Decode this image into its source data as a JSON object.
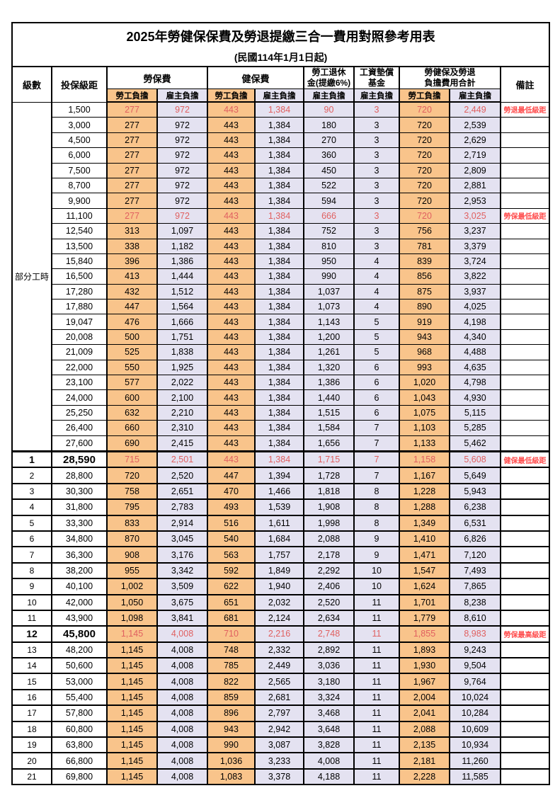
{
  "title": "2025年勞健保保費及勞退提繳三合一費用對照參考用表",
  "subtitle": "(民國114年1月1日起)",
  "header": {
    "level": "級數",
    "bracket": "投保級距",
    "labor_insurance": "勞保費",
    "health_insurance": "健保費",
    "pension_line1": "勞工退休",
    "pension_line2": "金(提繳6%)",
    "wage_fund_line1": "工資墊償",
    "wage_fund_line2": "基金",
    "total_line1": "勞健保及勞退",
    "total_line2": "負擔費用合計",
    "remark": "備註",
    "employee": "勞工負擔",
    "employer": "雇主負擔"
  },
  "colors": {
    "employee_bg": "#f9c48b",
    "employer_bg": "#e4e2f1",
    "highlight_value_text": "#e06060",
    "remark_text": "#ff4d4d",
    "border": "#000000"
  },
  "table": {
    "part_time_label": "部分工時",
    "rows": [
      {
        "section": "pt",
        "level": "",
        "bracket": "1,500",
        "values": [
          "277",
          "972",
          "443",
          "1,384",
          "90",
          "3",
          "720",
          "2,449"
        ],
        "remark": "勞退最低級距",
        "red": true,
        "big": false
      },
      {
        "section": "pt",
        "level": "",
        "bracket": "3,000",
        "values": [
          "277",
          "972",
          "443",
          "1,384",
          "180",
          "3",
          "720",
          "2,539"
        ],
        "remark": "",
        "red": false,
        "big": false
      },
      {
        "section": "pt",
        "level": "",
        "bracket": "4,500",
        "values": [
          "277",
          "972",
          "443",
          "1,384",
          "270",
          "3",
          "720",
          "2,629"
        ],
        "remark": "",
        "red": false,
        "big": false
      },
      {
        "section": "pt",
        "level": "",
        "bracket": "6,000",
        "values": [
          "277",
          "972",
          "443",
          "1,384",
          "360",
          "3",
          "720",
          "2,719"
        ],
        "remark": "",
        "red": false,
        "big": false
      },
      {
        "section": "pt",
        "level": "",
        "bracket": "7,500",
        "values": [
          "277",
          "972",
          "443",
          "1,384",
          "450",
          "3",
          "720",
          "2,809"
        ],
        "remark": "",
        "red": false,
        "big": false
      },
      {
        "section": "pt",
        "level": "",
        "bracket": "8,700",
        "values": [
          "277",
          "972",
          "443",
          "1,384",
          "522",
          "3",
          "720",
          "2,881"
        ],
        "remark": "",
        "red": false,
        "big": false
      },
      {
        "section": "pt",
        "level": "",
        "bracket": "9,900",
        "values": [
          "277",
          "972",
          "443",
          "1,384",
          "594",
          "3",
          "720",
          "2,953"
        ],
        "remark": "",
        "red": false,
        "big": false
      },
      {
        "section": "pt",
        "level": "",
        "bracket": "11,100",
        "values": [
          "277",
          "972",
          "443",
          "1,384",
          "666",
          "3",
          "720",
          "3,025"
        ],
        "remark": "勞保最低級距",
        "red": true,
        "big": false
      },
      {
        "section": "pt",
        "level": "",
        "bracket": "12,540",
        "values": [
          "313",
          "1,097",
          "443",
          "1,384",
          "752",
          "3",
          "756",
          "3,237"
        ],
        "remark": "",
        "red": false,
        "big": false
      },
      {
        "section": "pt",
        "level": "",
        "bracket": "13,500",
        "values": [
          "338",
          "1,182",
          "443",
          "1,384",
          "810",
          "3",
          "781",
          "3,379"
        ],
        "remark": "",
        "red": false,
        "big": false
      },
      {
        "section": "pt",
        "level": "",
        "bracket": "15,840",
        "values": [
          "396",
          "1,386",
          "443",
          "1,384",
          "950",
          "4",
          "839",
          "3,724"
        ],
        "remark": "",
        "red": false,
        "big": false
      },
      {
        "section": "pt",
        "level": "",
        "bracket": "16,500",
        "values": [
          "413",
          "1,444",
          "443",
          "1,384",
          "990",
          "4",
          "856",
          "3,822"
        ],
        "remark": "",
        "red": false,
        "big": false
      },
      {
        "section": "pt",
        "level": "",
        "bracket": "17,280",
        "values": [
          "432",
          "1,512",
          "443",
          "1,384",
          "1,037",
          "4",
          "875",
          "3,937"
        ],
        "remark": "",
        "red": false,
        "big": false
      },
      {
        "section": "pt",
        "level": "",
        "bracket": "17,880",
        "values": [
          "447",
          "1,564",
          "443",
          "1,384",
          "1,073",
          "4",
          "890",
          "4,025"
        ],
        "remark": "",
        "red": false,
        "big": false
      },
      {
        "section": "pt",
        "level": "",
        "bracket": "19,047",
        "values": [
          "476",
          "1,666",
          "443",
          "1,384",
          "1,143",
          "5",
          "919",
          "4,198"
        ],
        "remark": "",
        "red": false,
        "big": false
      },
      {
        "section": "pt",
        "level": "",
        "bracket": "20,008",
        "values": [
          "500",
          "1,751",
          "443",
          "1,384",
          "1,200",
          "5",
          "943",
          "4,340"
        ],
        "remark": "",
        "red": false,
        "big": false
      },
      {
        "section": "pt",
        "level": "",
        "bracket": "21,009",
        "values": [
          "525",
          "1,838",
          "443",
          "1,384",
          "1,261",
          "5",
          "968",
          "4,488"
        ],
        "remark": "",
        "red": false,
        "big": false
      },
      {
        "section": "pt",
        "level": "",
        "bracket": "22,000",
        "values": [
          "550",
          "1,925",
          "443",
          "1,384",
          "1,320",
          "6",
          "993",
          "4,635"
        ],
        "remark": "",
        "red": false,
        "big": false
      },
      {
        "section": "pt",
        "level": "",
        "bracket": "23,100",
        "values": [
          "577",
          "2,022",
          "443",
          "1,384",
          "1,386",
          "6",
          "1,020",
          "4,798"
        ],
        "remark": "",
        "red": false,
        "big": false
      },
      {
        "section": "pt",
        "level": "",
        "bracket": "24,000",
        "values": [
          "600",
          "2,100",
          "443",
          "1,384",
          "1,440",
          "6",
          "1,043",
          "4,930"
        ],
        "remark": "",
        "red": false,
        "big": false
      },
      {
        "section": "pt",
        "level": "",
        "bracket": "25,250",
        "values": [
          "632",
          "2,210",
          "443",
          "1,384",
          "1,515",
          "6",
          "1,075",
          "5,115"
        ],
        "remark": "",
        "red": false,
        "big": false
      },
      {
        "section": "pt",
        "level": "",
        "bracket": "26,400",
        "values": [
          "660",
          "2,310",
          "443",
          "1,384",
          "1,584",
          "7",
          "1,103",
          "5,285"
        ],
        "remark": "",
        "red": false,
        "big": false
      },
      {
        "section": "pt",
        "level": "",
        "bracket": "27,600",
        "values": [
          "690",
          "2,415",
          "443",
          "1,384",
          "1,656",
          "7",
          "1,133",
          "5,462"
        ],
        "remark": "",
        "red": false,
        "big": false
      },
      {
        "section": "num",
        "level": "1",
        "bracket": "28,590",
        "values": [
          "715",
          "2,501",
          "443",
          "1,384",
          "1,715",
          "7",
          "1,158",
          "5,608"
        ],
        "remark": "健保最低級距",
        "red": true,
        "big": true
      },
      {
        "section": "num",
        "level": "2",
        "bracket": "28,800",
        "values": [
          "720",
          "2,520",
          "447",
          "1,394",
          "1,728",
          "7",
          "1,167",
          "5,649"
        ],
        "remark": "",
        "red": false,
        "big": false
      },
      {
        "section": "num",
        "level": "3",
        "bracket": "30,300",
        "values": [
          "758",
          "2,651",
          "470",
          "1,466",
          "1,818",
          "8",
          "1,228",
          "5,943"
        ],
        "remark": "",
        "red": false,
        "big": false
      },
      {
        "section": "num",
        "level": "4",
        "bracket": "31,800",
        "values": [
          "795",
          "2,783",
          "493",
          "1,539",
          "1,908",
          "8",
          "1,288",
          "6,238"
        ],
        "remark": "",
        "red": false,
        "big": false
      },
      {
        "section": "num",
        "level": "5",
        "bracket": "33,300",
        "values": [
          "833",
          "2,914",
          "516",
          "1,611",
          "1,998",
          "8",
          "1,349",
          "6,531"
        ],
        "remark": "",
        "red": false,
        "big": false
      },
      {
        "section": "num",
        "level": "6",
        "bracket": "34,800",
        "values": [
          "870",
          "3,045",
          "540",
          "1,684",
          "2,088",
          "9",
          "1,410",
          "6,826"
        ],
        "remark": "",
        "red": false,
        "big": false
      },
      {
        "section": "num",
        "level": "7",
        "bracket": "36,300",
        "values": [
          "908",
          "3,176",
          "563",
          "1,757",
          "2,178",
          "9",
          "1,471",
          "7,120"
        ],
        "remark": "",
        "red": false,
        "big": false
      },
      {
        "section": "num",
        "level": "8",
        "bracket": "38,200",
        "values": [
          "955",
          "3,342",
          "592",
          "1,849",
          "2,292",
          "10",
          "1,547",
          "7,493"
        ],
        "remark": "",
        "red": false,
        "big": false
      },
      {
        "section": "num",
        "level": "9",
        "bracket": "40,100",
        "values": [
          "1,002",
          "3,509",
          "622",
          "1,940",
          "2,406",
          "10",
          "1,624",
          "7,865"
        ],
        "remark": "",
        "red": false,
        "big": false
      },
      {
        "section": "num",
        "level": "10",
        "bracket": "42,000",
        "values": [
          "1,050",
          "3,675",
          "651",
          "2,032",
          "2,520",
          "11",
          "1,701",
          "8,238"
        ],
        "remark": "",
        "red": false,
        "big": false
      },
      {
        "section": "num",
        "level": "11",
        "bracket": "43,900",
        "values": [
          "1,098",
          "3,841",
          "681",
          "2,124",
          "2,634",
          "11",
          "1,779",
          "8,610"
        ],
        "remark": "",
        "red": false,
        "big": false
      },
      {
        "section": "num",
        "level": "12",
        "bracket": "45,800",
        "values": [
          "1,145",
          "4,008",
          "710",
          "2,216",
          "2,748",
          "11",
          "1,855",
          "8,983"
        ],
        "remark": "勞保最高級距",
        "red": true,
        "big": true
      },
      {
        "section": "num",
        "level": "13",
        "bracket": "48,200",
        "values": [
          "1,145",
          "4,008",
          "748",
          "2,332",
          "2,892",
          "11",
          "1,893",
          "9,243"
        ],
        "remark": "",
        "red": false,
        "big": false
      },
      {
        "section": "num",
        "level": "14",
        "bracket": "50,600",
        "values": [
          "1,145",
          "4,008",
          "785",
          "2,449",
          "3,036",
          "11",
          "1,930",
          "9,504"
        ],
        "remark": "",
        "red": false,
        "big": false
      },
      {
        "section": "num",
        "level": "15",
        "bracket": "53,000",
        "values": [
          "1,145",
          "4,008",
          "822",
          "2,565",
          "3,180",
          "11",
          "1,967",
          "9,764"
        ],
        "remark": "",
        "red": false,
        "big": false
      },
      {
        "section": "num",
        "level": "16",
        "bracket": "55,400",
        "values": [
          "1,145",
          "4,008",
          "859",
          "2,681",
          "3,324",
          "11",
          "2,004",
          "10,024"
        ],
        "remark": "",
        "red": false,
        "big": false
      },
      {
        "section": "num",
        "level": "17",
        "bracket": "57,800",
        "values": [
          "1,145",
          "4,008",
          "896",
          "2,797",
          "3,468",
          "11",
          "2,041",
          "10,284"
        ],
        "remark": "",
        "red": false,
        "big": false
      },
      {
        "section": "num",
        "level": "18",
        "bracket": "60,800",
        "values": [
          "1,145",
          "4,008",
          "943",
          "2,942",
          "3,648",
          "11",
          "2,088",
          "10,609"
        ],
        "remark": "",
        "red": false,
        "big": false
      },
      {
        "section": "num",
        "level": "19",
        "bracket": "63,800",
        "values": [
          "1,145",
          "4,008",
          "990",
          "3,087",
          "3,828",
          "11",
          "2,135",
          "10,934"
        ],
        "remark": "",
        "red": false,
        "big": false
      },
      {
        "section": "num",
        "level": "20",
        "bracket": "66,800",
        "values": [
          "1,145",
          "4,008",
          "1,036",
          "3,233",
          "4,008",
          "11",
          "2,181",
          "11,260"
        ],
        "remark": "",
        "red": false,
        "big": false
      },
      {
        "section": "num",
        "level": "21",
        "bracket": "69,800",
        "values": [
          "1,145",
          "4,008",
          "1,083",
          "3,378",
          "4,188",
          "11",
          "2,228",
          "11,585"
        ],
        "remark": "",
        "red": false,
        "big": false
      }
    ]
  }
}
